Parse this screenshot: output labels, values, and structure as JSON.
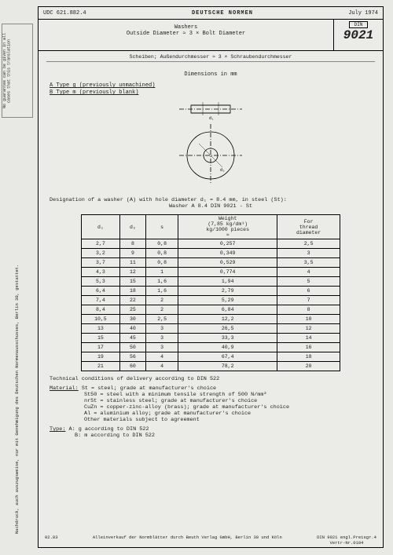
{
  "header": {
    "udc": "UDC 621.882.4",
    "title": "DEUTSCHE NORMEN",
    "date": "July 1974"
  },
  "title": {
    "l1": "Washers",
    "l2": "Outside Diameter ≈ 3 × Bolt Diameter",
    "din": "DIN",
    "num": "9021"
  },
  "subline": "Scheiben; Außendurchmesser ≈ 3 × Schraubendurchmesser",
  "dim": "Dimensions in mm",
  "types": {
    "a": "A  Type g (previously unmachined)",
    "b": "B  Type m (previously blank)"
  },
  "designation": {
    "l1": "Designation of a washer (A) with hole diameter d₁ = 8.4 mm, in steel (St):",
    "l2": "Washer A 8.4 DIN 9021 - St"
  },
  "table": {
    "headers": [
      "d₁",
      "d₂",
      "s",
      "Weight\n(7,85 kg/dm³)\nkg/1000 pieces\n≈",
      "For\nthread\ndiameter"
    ],
    "rows": [
      [
        "2,7",
        "8",
        "0,8",
        "0,257",
        "2,5"
      ],
      [
        "3,2",
        "9",
        "0,8",
        "0,349",
        "3"
      ],
      [
        "3,7",
        "11",
        "0,8",
        "0,529",
        "3,5"
      ],
      [
        "4,3",
        "12",
        "1",
        "0,774",
        "4"
      ],
      [
        "5,3",
        "15",
        "1,6",
        "1,94",
        "5"
      ],
      [
        "6,4",
        "18",
        "1,6",
        "2,79",
        "6"
      ],
      [
        "7,4",
        "22",
        "2",
        "5,29",
        "7"
      ],
      [
        "8,4",
        "25",
        "2",
        "6,84",
        "8"
      ],
      [
        "10,5",
        "30",
        "2,5",
        "12,2",
        "10"
      ],
      [
        "13",
        "40",
        "3",
        "26,5",
        "12"
      ],
      [
        "15",
        "45",
        "3",
        "33,3",
        "14"
      ],
      [
        "17",
        "50",
        "3",
        "40,9",
        "16"
      ],
      [
        "19",
        "56",
        "4",
        "67,4",
        "18"
      ],
      [
        "21",
        "60",
        "4",
        "78,2",
        "20"
      ]
    ]
  },
  "tech": {
    "line": "Technical conditions of delivery according to DIN 522",
    "mat_label": "Material:",
    "mats": [
      "St  = steel; grade at manufacturer's choice",
      "St50 = steel with a minimum tensile strength of 500 N/mm²",
      "nrSt = stainless steel; grade at manufacturer's choice",
      "CuZn = copper-zinc-alloy (brass); grade at manufacturer's choice",
      "Al  = aluminium alloy; grade at manufacturer's choice",
      "      Other materials subject to agreement"
    ],
    "type_label": "Type:",
    "types": [
      "A: g according to DIN 522",
      "B: m according to DIN 522"
    ]
  },
  "footer": {
    "l": "02.83",
    "c": "Alleinverkauf der Normblätter durch Beuth Verlag GmbH, Berlin 30 und Köln",
    "r1": "DIN 9021 engl.Preisgr.4",
    "r2": "Vertr-Nr.0104"
  },
  "side": {
    "s1": "Nachdruck, auch auszugsweise, nur mit Genehmigung des Deutschen Normenausschusses, Berlin 30, gestattet.",
    "s3": "pect"
  },
  "guarantee": "No guarantee can be given in all cases that this translation"
}
